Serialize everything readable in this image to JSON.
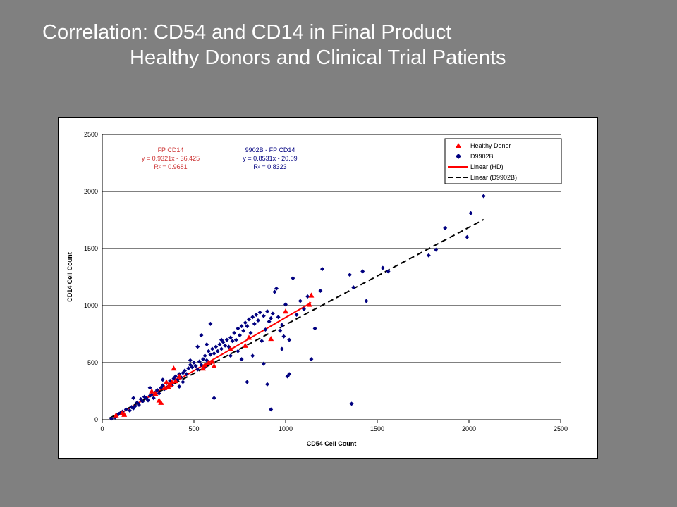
{
  "slide": {
    "title_line1": "Correlation:  CD54 and CD14 in Final Product",
    "title_line2": "Healthy Donors and Clinical Trial Patients"
  },
  "colors": {
    "healthy_donor": "#ff0000",
    "d9902b": "#000080",
    "grid": "#000000",
    "text_hd": "#cc3333",
    "text_d": "#000080"
  },
  "chart_data": {
    "type": "scatter",
    "xlabel": "CD54 Cell Count",
    "ylabel": "CD14 Cell Count",
    "xlim": [
      0,
      2500
    ],
    "ylim": [
      0,
      2500
    ],
    "xticks": [
      0,
      500,
      1000,
      1500,
      2000,
      2500
    ],
    "yticks": [
      0,
      500,
      1000,
      1500,
      2000,
      2500
    ],
    "grid": "horizontal",
    "legend_position": "top-right",
    "legend": [
      "Healthy Donor",
      "D9902B",
      "Linear (HD)",
      "Linear (D9902B)"
    ],
    "annotations": [
      {
        "id": "hd",
        "lines": [
          "FP CD14",
          "y = 0.9321x - 36.425",
          "R² = 0.9681"
        ]
      },
      {
        "id": "d",
        "lines": [
          "9902B - FP CD14",
          "y = 0.8531x - 20.09",
          "R² = 0.8323"
        ]
      }
    ],
    "series": [
      {
        "name": "Healthy Donor",
        "marker": "triangle",
        "points": [
          [
            75,
            40
          ],
          [
            110,
            60
          ],
          [
            120,
            45
          ],
          [
            270,
            250
          ],
          [
            290,
            230
          ],
          [
            310,
            170
          ],
          [
            320,
            150
          ],
          [
            340,
            280
          ],
          [
            350,
            330
          ],
          [
            360,
            290
          ],
          [
            370,
            310
          ],
          [
            380,
            330
          ],
          [
            390,
            450
          ],
          [
            400,
            340
          ],
          [
            420,
            380
          ],
          [
            550,
            450
          ],
          [
            560,
            480
          ],
          [
            580,
            500
          ],
          [
            600,
            510
          ],
          [
            610,
            470
          ],
          [
            700,
            620
          ],
          [
            780,
            650
          ],
          [
            800,
            720
          ],
          [
            920,
            710
          ],
          [
            1000,
            950
          ],
          [
            1130,
            1010
          ],
          [
            1140,
            1090
          ]
        ]
      },
      {
        "name": "D9902B",
        "marker": "diamond",
        "points": [
          [
            50,
            10
          ],
          [
            70,
            20
          ],
          [
            80,
            40
          ],
          [
            90,
            50
          ],
          [
            100,
            60
          ],
          [
            110,
            70
          ],
          [
            130,
            90
          ],
          [
            150,
            80
          ],
          [
            160,
            110
          ],
          [
            170,
            100
          ],
          [
            180,
            120
          ],
          [
            190,
            150
          ],
          [
            200,
            130
          ],
          [
            210,
            180
          ],
          [
            220,
            160
          ],
          [
            230,
            200
          ],
          [
            240,
            190
          ],
          [
            250,
            170
          ],
          [
            260,
            210
          ],
          [
            270,
            220
          ],
          [
            280,
            190
          ],
          [
            290,
            240
          ],
          [
            300,
            260
          ],
          [
            310,
            230
          ],
          [
            320,
            280
          ],
          [
            330,
            300
          ],
          [
            340,
            270
          ],
          [
            350,
            320
          ],
          [
            360,
            290
          ],
          [
            370,
            340
          ],
          [
            380,
            300
          ],
          [
            390,
            360
          ],
          [
            400,
            380
          ],
          [
            410,
            350
          ],
          [
            420,
            400
          ],
          [
            430,
            370
          ],
          [
            440,
            410
          ],
          [
            450,
            430
          ],
          [
            460,
            400
          ],
          [
            470,
            450
          ],
          [
            480,
            480
          ],
          [
            490,
            460
          ],
          [
            500,
            500
          ],
          [
            510,
            470
          ],
          [
            520,
            440
          ],
          [
            530,
            510
          ],
          [
            540,
            480
          ],
          [
            550,
            530
          ],
          [
            560,
            560
          ],
          [
            570,
            520
          ],
          [
            580,
            600
          ],
          [
            590,
            570
          ],
          [
            600,
            620
          ],
          [
            610,
            580
          ],
          [
            620,
            640
          ],
          [
            630,
            600
          ],
          [
            640,
            660
          ],
          [
            650,
            620
          ],
          [
            660,
            680
          ],
          [
            670,
            650
          ],
          [
            680,
            700
          ],
          [
            690,
            640
          ],
          [
            700,
            720
          ],
          [
            710,
            690
          ],
          [
            720,
            760
          ],
          [
            730,
            700
          ],
          [
            740,
            800
          ],
          [
            750,
            740
          ],
          [
            760,
            820
          ],
          [
            770,
            780
          ],
          [
            780,
            850
          ],
          [
            790,
            820
          ],
          [
            800,
            880
          ],
          [
            810,
            760
          ],
          [
            820,
            900
          ],
          [
            830,
            840
          ],
          [
            840,
            920
          ],
          [
            850,
            870
          ],
          [
            860,
            940
          ],
          [
            870,
            690
          ],
          [
            880,
            910
          ],
          [
            890,
            790
          ],
          [
            900,
            950
          ],
          [
            910,
            860
          ],
          [
            920,
            890
          ],
          [
            930,
            930
          ],
          [
            940,
            1120
          ],
          [
            950,
            1150
          ],
          [
            960,
            900
          ],
          [
            970,
            780
          ],
          [
            980,
            830
          ],
          [
            990,
            730
          ],
          [
            1000,
            1010
          ],
          [
            1010,
            380
          ],
          [
            1020,
            700
          ],
          [
            1040,
            1240
          ],
          [
            1060,
            920
          ],
          [
            1080,
            1040
          ],
          [
            1100,
            970
          ],
          [
            1120,
            1080
          ],
          [
            1140,
            530
          ],
          [
            1160,
            800
          ],
          [
            1190,
            1130
          ],
          [
            1200,
            1320
          ],
          [
            1350,
            1270
          ],
          [
            1360,
            140
          ],
          [
            1370,
            1160
          ],
          [
            1420,
            1300
          ],
          [
            1440,
            1040
          ],
          [
            1530,
            1330
          ],
          [
            1560,
            1300
          ],
          [
            1780,
            1440
          ],
          [
            1820,
            1490
          ],
          [
            1870,
            1680
          ],
          [
            1990,
            1600
          ],
          [
            2010,
            1810
          ],
          [
            2080,
            1960
          ],
          [
            170,
            190
          ],
          [
            260,
            280
          ],
          [
            330,
            350
          ],
          [
            420,
            290
          ],
          [
            440,
            330
          ],
          [
            480,
            520
          ],
          [
            520,
            640
          ],
          [
            540,
            740
          ],
          [
            560,
            460
          ],
          [
            570,
            660
          ],
          [
            590,
            840
          ],
          [
            610,
            190
          ],
          [
            650,
            700
          ],
          [
            700,
            560
          ],
          [
            740,
            600
          ],
          [
            760,
            530
          ],
          [
            790,
            330
          ],
          [
            820,
            560
          ],
          [
            880,
            490
          ],
          [
            900,
            310
          ],
          [
            920,
            90
          ],
          [
            980,
            620
          ],
          [
            1020,
            400
          ]
        ]
      }
    ],
    "fits": [
      {
        "name": "Linear (HD)",
        "slope": 0.9321,
        "intercept": -36.425,
        "x_range": [
          60,
          1140
        ],
        "style": "solid"
      },
      {
        "name": "Linear (D9902B)",
        "slope": 0.8531,
        "intercept": -20.09,
        "x_range": [
          40,
          2080
        ],
        "style": "dashed"
      }
    ]
  }
}
